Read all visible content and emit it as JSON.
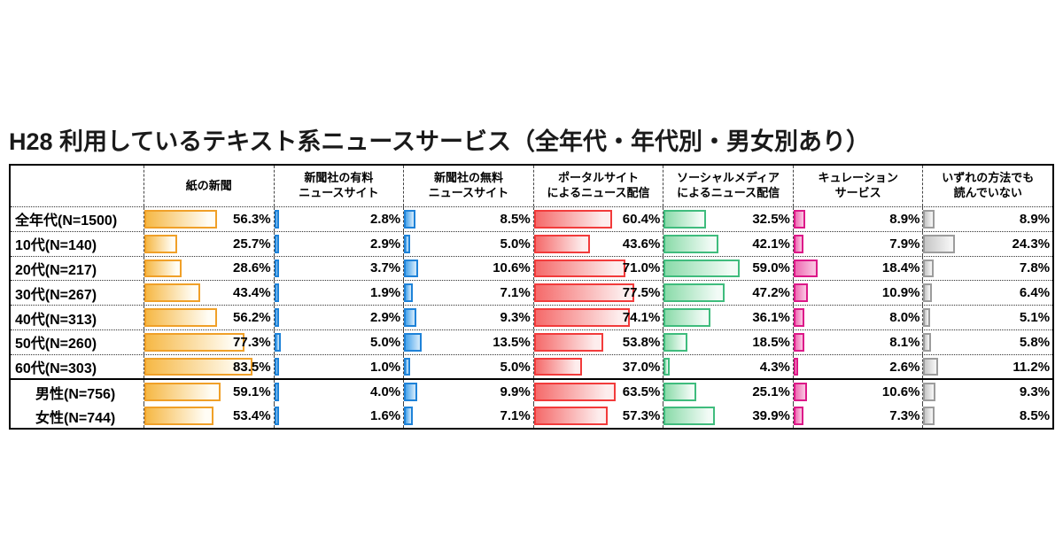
{
  "title": "H28 利用しているテキスト系ニュースサービス（全年代・年代別・男女別あり）",
  "chart_data": {
    "type": "bar",
    "orientation": "horizontal",
    "title": "H28 利用しているテキスト系ニュースサービス（全年代・年代別・男女別あり）",
    "unit": "%",
    "xlim": [
      0,
      100
    ],
    "value_format": "one-decimal-percent",
    "grid": false,
    "legend_position": "column-headers",
    "columns": [
      {
        "name": "紙の新聞",
        "header_lines": [
          "紙の新聞"
        ],
        "border_color": "#F0A028",
        "fill_start": "#F6B845",
        "fill_end": "#FFFDF5"
      },
      {
        "name": "新聞社の有料ニュースサイト",
        "header_lines": [
          "新聞社の有料",
          "ニュースサイト"
        ],
        "border_color": "#1E82D8",
        "fill_start": "#47A3EB",
        "fill_end": "#CBE6FA"
      },
      {
        "name": "新聞社の無料ニュースサイト",
        "header_lines": [
          "新聞社の無料",
          "ニュースサイト"
        ],
        "border_color": "#1E82D8",
        "fill_start": "#47A3EB",
        "fill_end": "#CBE6FA"
      },
      {
        "name": "ポータルサイトによるニュース配信",
        "header_lines": [
          "ポータルサイト",
          "によるニュース配信"
        ],
        "border_color": "#F23B3B",
        "fill_start": "#F56A6A",
        "fill_end": "#FDEDED"
      },
      {
        "name": "ソーシャルメディアによるニュース配信",
        "header_lines": [
          "ソーシャルメディア",
          "によるニュース配信"
        ],
        "border_color": "#3FBC7D",
        "fill_start": "#8ADBA9",
        "fill_end": "#F2FBF6"
      },
      {
        "name": "キュレーションサービス",
        "header_lines": [
          "キュレーション",
          "サービス"
        ],
        "border_color": "#DC1888",
        "fill_start": "#EE6AB2",
        "fill_end": "#F9C0DF"
      },
      {
        "name": "いずれの方法でも読んでいない",
        "header_lines": [
          "いずれの方法でも",
          "読んでいない"
        ],
        "border_color": "#9C9C9C",
        "fill_start": "#C6C6C6",
        "fill_end": "#F4F4F4"
      }
    ],
    "rows": [
      {
        "label": "全年代(N=1500)",
        "indent": false,
        "separator": "dotted",
        "values": [
          56.3,
          2.8,
          8.5,
          60.4,
          32.5,
          8.9,
          8.9
        ]
      },
      {
        "label": "10代(N=140)",
        "indent": false,
        "separator": "dotted",
        "values": [
          25.7,
          2.9,
          5.0,
          43.6,
          42.1,
          7.9,
          24.3
        ]
      },
      {
        "label": "20代(N=217)",
        "indent": false,
        "separator": "dotted",
        "values": [
          28.6,
          3.7,
          10.6,
          71.0,
          59.0,
          18.4,
          7.8
        ]
      },
      {
        "label": "30代(N=267)",
        "indent": false,
        "separator": "dotted",
        "values": [
          43.4,
          1.9,
          7.1,
          77.5,
          47.2,
          10.9,
          6.4
        ]
      },
      {
        "label": "40代(N=313)",
        "indent": false,
        "separator": "dotted",
        "values": [
          56.2,
          2.9,
          9.3,
          74.1,
          36.1,
          8.0,
          5.1
        ]
      },
      {
        "label": "50代(N=260)",
        "indent": false,
        "separator": "dotted",
        "values": [
          77.3,
          5.0,
          13.5,
          53.8,
          18.5,
          8.1,
          5.8
        ]
      },
      {
        "label": "60代(N=303)",
        "indent": false,
        "separator": "dotted",
        "values": [
          83.5,
          1.0,
          5.0,
          37.0,
          4.3,
          2.6,
          11.2
        ]
      },
      {
        "label": "男性(N=756)",
        "indent": true,
        "separator": "thick",
        "values": [
          59.1,
          4.0,
          9.9,
          63.5,
          25.1,
          10.6,
          9.3
        ]
      },
      {
        "label": "女性(N=744)",
        "indent": true,
        "separator": "none",
        "values": [
          53.4,
          1.6,
          7.1,
          57.3,
          39.9,
          7.3,
          8.5
        ]
      }
    ]
  }
}
